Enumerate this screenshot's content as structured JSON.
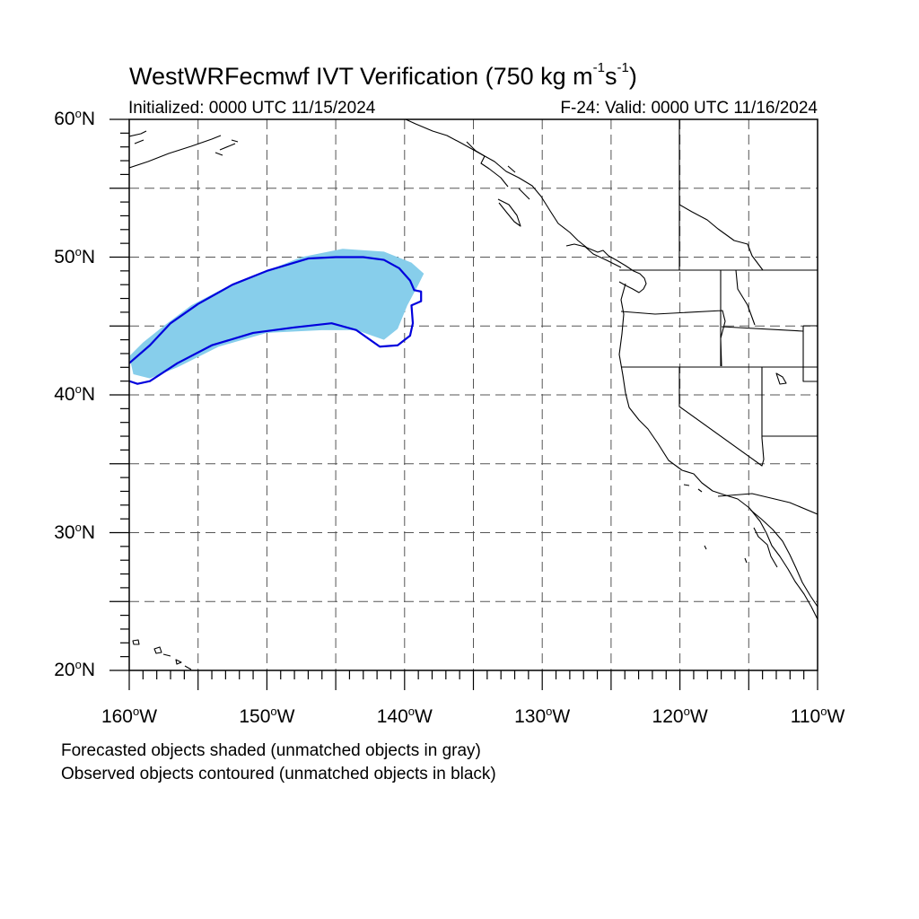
{
  "header": {
    "title_main": "WestWRFecmwf IVT Verification (750 kg m",
    "title_sup1": "-1",
    "title_mid": "s",
    "title_sup2": "-1",
    "title_end": ")",
    "init_text": "Initialized: 0000 UTC 11/15/2024",
    "valid_text": "F-24: Valid: 0000 UTC 11/16/2024"
  },
  "map": {
    "lat_range": [
      20,
      60
    ],
    "lon_range": [
      -160,
      -110
    ],
    "lat_labels": [
      {
        "value": 60,
        "num": "60",
        "deg": "o",
        "hemi": "N"
      },
      {
        "value": 50,
        "num": "50",
        "deg": "o",
        "hemi": "N"
      },
      {
        "value": 40,
        "num": "40",
        "deg": "o",
        "hemi": "N"
      },
      {
        "value": 30,
        "num": "30",
        "deg": "o",
        "hemi": "N"
      },
      {
        "value": 20,
        "num": "20",
        "deg": "o",
        "hemi": "N"
      }
    ],
    "lon_labels": [
      {
        "value": -160,
        "num": "160",
        "deg": "o",
        "hemi": "W"
      },
      {
        "value": -150,
        "num": "150",
        "deg": "o",
        "hemi": "W"
      },
      {
        "value": -140,
        "num": "140",
        "deg": "o",
        "hemi": "W"
      },
      {
        "value": -130,
        "num": "130",
        "deg": "o",
        "hemi": "W"
      },
      {
        "value": -120,
        "num": "120",
        "deg": "o",
        "hemi": "W"
      },
      {
        "value": -110,
        "num": "110",
        "deg": "o",
        "hemi": "W"
      }
    ],
    "grid_style": "dashed",
    "forecast_object": {
      "fill_color": "#87ceeb",
      "points": [
        [
          -160,
          42.8
        ],
        [
          -159,
          43.8
        ],
        [
          -157.5,
          45
        ],
        [
          -155.5,
          46.5
        ],
        [
          -153,
          47.8
        ],
        [
          -150,
          49
        ],
        [
          -147.5,
          50
        ],
        [
          -144.5,
          50.6
        ],
        [
          -141.5,
          50.4
        ],
        [
          -139.5,
          49.6
        ],
        [
          -138.6,
          48.8
        ],
        [
          -139,
          48
        ],
        [
          -139.8,
          46.5
        ],
        [
          -140.5,
          44.8
        ],
        [
          -141.5,
          44
        ],
        [
          -143.5,
          44.7
        ],
        [
          -146,
          44.7
        ],
        [
          -150,
          44.5
        ],
        [
          -153.5,
          43.5
        ],
        [
          -156.5,
          42
        ],
        [
          -158.5,
          41.2
        ],
        [
          -159.7,
          41.5
        ]
      ]
    },
    "observed_object": {
      "line_color": "#0000dd",
      "points": [
        [
          -160,
          42.3
        ],
        [
          -158.5,
          43.6
        ],
        [
          -157,
          45.2
        ],
        [
          -155,
          46.6
        ],
        [
          -152.5,
          48
        ],
        [
          -150,
          49
        ],
        [
          -147,
          49.9
        ],
        [
          -145,
          50
        ],
        [
          -143,
          50
        ],
        [
          -141.5,
          49.8
        ],
        [
          -140.4,
          49.2
        ],
        [
          -139.6,
          48.3
        ],
        [
          -139.3,
          47.6
        ],
        [
          -138.8,
          47.5
        ],
        [
          -138.8,
          46.8
        ],
        [
          -139.5,
          46.5
        ],
        [
          -139.4,
          45.2
        ],
        [
          -139.6,
          44.3
        ],
        [
          -140.5,
          43.6
        ],
        [
          -141.8,
          43.5
        ],
        [
          -143.5,
          44.7
        ],
        [
          -145.3,
          45.2
        ],
        [
          -148,
          44.9
        ],
        [
          -151,
          44.5
        ],
        [
          -154,
          43.6
        ],
        [
          -156.5,
          42.3
        ],
        [
          -158.5,
          41
        ],
        [
          -159.4,
          40.8
        ],
        [
          -160,
          41
        ]
      ]
    }
  },
  "footer": {
    "line1": "Forecasted objects shaded (unmatched objects in gray)",
    "line2": "Observed objects contoured (unmatched objects in black)"
  }
}
